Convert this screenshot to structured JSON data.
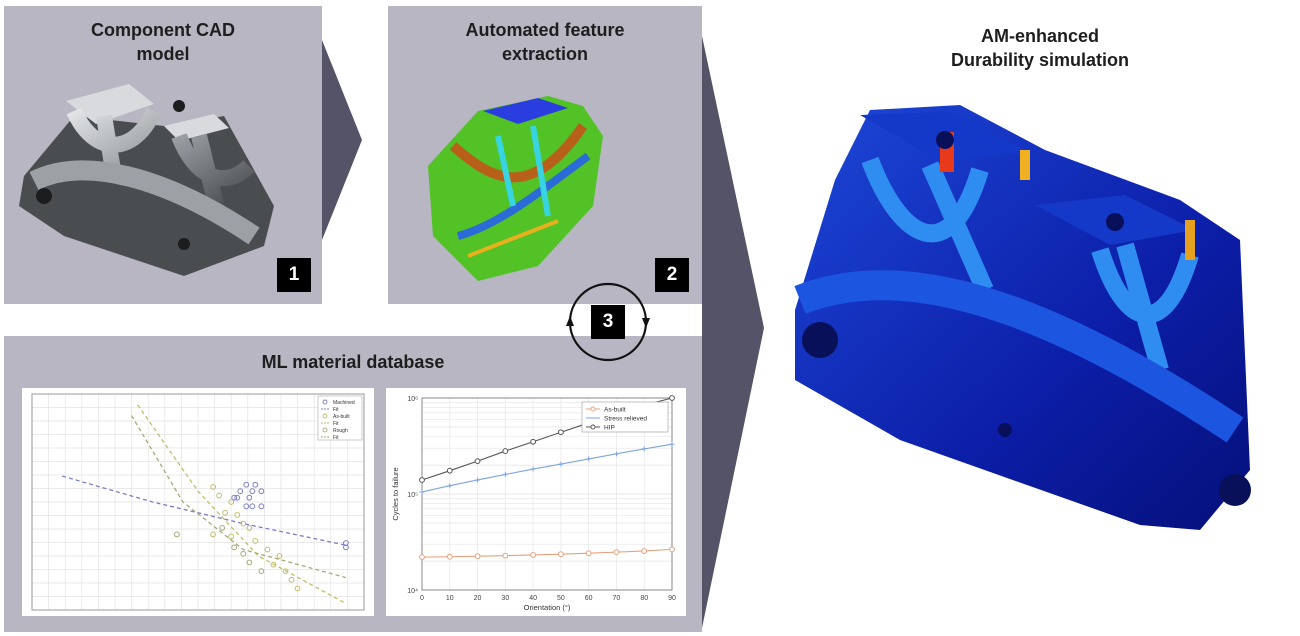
{
  "panels": {
    "cad": {
      "title_line1": "Component CAD",
      "title_line2": "model",
      "badge": "1"
    },
    "feature": {
      "title_line1": "Automated feature",
      "title_line2": "extraction",
      "badge": "2"
    },
    "cycle": {
      "badge": "3"
    },
    "ml": {
      "title": "ML material database"
    },
    "sim": {
      "title_line1": "AM-enhanced",
      "title_line2": "Durability simulation"
    }
  },
  "colors": {
    "panel": "#b7b6c2",
    "arrow": "#545367",
    "badge": "#000000"
  },
  "chart_data": [
    {
      "type": "scatter",
      "series": [
        {
          "name": "Machined",
          "color": "#7b7fc6",
          "marker": "circle",
          "points": [
            [
              0.71,
              0.42
            ],
            [
              0.74,
              0.42
            ],
            [
              0.69,
              0.45
            ],
            [
              0.73,
              0.45
            ],
            [
              0.76,
              0.45
            ],
            [
              0.68,
              0.48
            ],
            [
              0.72,
              0.48
            ],
            [
              0.67,
              0.48
            ],
            [
              0.73,
              0.52
            ],
            [
              0.76,
              0.52
            ],
            [
              0.71,
              0.52
            ],
            [
              1.04,
              0.69
            ],
            [
              1.04,
              0.71
            ]
          ]
        },
        {
          "name": "Fit",
          "color": "#7b7fc6",
          "marker": "dashed-line",
          "curve": [
            [
              0.1,
              0.38
            ],
            [
              0.4,
              0.5
            ],
            [
              0.7,
              0.6
            ],
            [
              1.04,
              0.7
            ]
          ]
        },
        {
          "name": "As-built",
          "color": "#c2bd6a",
          "marker": "circle",
          "points": [
            [
              0.6,
              0.43
            ],
            [
              0.62,
              0.47
            ],
            [
              0.66,
              0.5
            ],
            [
              0.64,
              0.55
            ],
            [
              0.68,
              0.56
            ],
            [
              0.7,
              0.6
            ],
            [
              0.72,
              0.62
            ],
            [
              0.6,
              0.65
            ],
            [
              0.66,
              0.66
            ],
            [
              0.74,
              0.68
            ],
            [
              0.78,
              0.72
            ],
            [
              0.82,
              0.75
            ],
            [
              0.8,
              0.79
            ],
            [
              0.84,
              0.82
            ],
            [
              0.86,
              0.86
            ],
            [
              0.88,
              0.9
            ]
          ]
        },
        {
          "name": "Fit",
          "color": "#c2bd6a",
          "marker": "dashed-line",
          "curve": [
            [
              0.35,
              0.05
            ],
            [
              0.55,
              0.45
            ],
            [
              0.75,
              0.75
            ],
            [
              1.04,
              0.97
            ]
          ]
        },
        {
          "name": "Rough",
          "color": "#a7a97a",
          "marker": "circle",
          "points": [
            [
              0.48,
              0.65
            ],
            [
              0.63,
              0.62
            ],
            [
              0.67,
              0.71
            ],
            [
              0.7,
              0.74
            ],
            [
              0.72,
              0.78
            ],
            [
              0.76,
              0.82
            ]
          ]
        },
        {
          "name": "Fit",
          "color": "#a7a97a",
          "marker": "dashed-line",
          "curve": [
            [
              0.33,
              0.1
            ],
            [
              0.5,
              0.5
            ],
            [
              0.7,
              0.72
            ],
            [
              1.04,
              0.85
            ]
          ]
        }
      ]
    },
    {
      "type": "line",
      "xlabel": "Orientation (°)",
      "ylabel": "Cycles to failure",
      "x": [
        0,
        10,
        20,
        30,
        40,
        50,
        60,
        70,
        80,
        90
      ],
      "xticks": [
        "0",
        "10",
        "20",
        "30",
        "40",
        "50",
        "60",
        "70",
        "80",
        "90"
      ],
      "ylim": [
        10000,
        1000000
      ],
      "yscale": "log",
      "yticks": [
        "10⁴",
        "10⁵",
        "10⁶"
      ],
      "legend_position": "top-right",
      "series": [
        {
          "name": "As-built",
          "color": "#e5a07a",
          "marker": "o",
          "values": [
            22000,
            22200,
            22500,
            22800,
            23200,
            23600,
            24200,
            24800,
            25500,
            26500
          ]
        },
        {
          "name": "Stress relieved",
          "color": "#7ea4e0",
          "marker": "+",
          "values": [
            105000,
            122000,
            140000,
            160000,
            182000,
            205000,
            232000,
            262000,
            295000,
            330000
          ]
        },
        {
          "name": "HIP",
          "color": "#555555",
          "marker": "o",
          "values": [
            140000,
            175000,
            220000,
            280000,
            350000,
            440000,
            550000,
            680000,
            840000,
            1000000
          ]
        }
      ]
    }
  ]
}
